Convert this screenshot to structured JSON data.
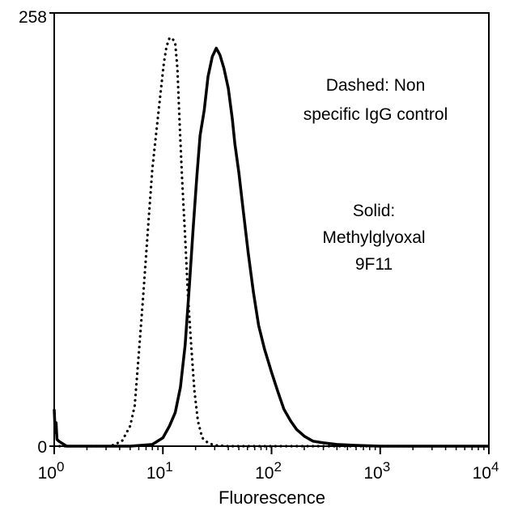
{
  "chart_data": {
    "type": "line",
    "xlabel": "Fluorescence",
    "ylabel": "",
    "x_scale": "log",
    "xlim": [
      1,
      10000
    ],
    "ylim": [
      0,
      258
    ],
    "x_ticks": [
      {
        "value": 1,
        "base": "10",
        "exp": "0"
      },
      {
        "value": 10,
        "base": "10",
        "exp": "1"
      },
      {
        "value": 100,
        "base": "10",
        "exp": "2"
      },
      {
        "value": 1000,
        "base": "10",
        "exp": "3"
      },
      {
        "value": 10000,
        "base": "10",
        "exp": "4"
      }
    ],
    "y_ticks": [
      {
        "value": 0,
        "label": "0"
      },
      {
        "value": 258,
        "label": "258"
      }
    ],
    "grid": false,
    "series": [
      {
        "style": "dotted",
        "color": "#000000",
        "x": [
          1,
          3.3,
          4.2,
          5.0,
          5.5,
          6.0,
          6.6,
          7.3,
          8.0,
          8.8,
          9.5,
          10.2,
          10.8,
          11.5,
          12.2,
          13.0,
          13.6,
          14.2,
          15.0,
          16.0,
          17.0,
          18.3,
          19.5,
          21.0,
          23.0,
          26.0,
          30.0,
          40.0,
          100.0,
          10000
        ],
        "y": [
          0,
          0,
          3,
          12,
          24,
          55,
          90,
          130,
          165,
          190,
          210,
          228,
          238,
          243,
          243,
          240,
          225,
          195,
          160,
          125,
          90,
          58,
          33,
          15,
          5,
          2,
          0.5,
          0,
          0,
          0
        ]
      },
      {
        "style": "solid",
        "color": "#000000",
        "x": [
          1,
          1.02,
          1.04,
          1.06,
          1.1,
          1.3,
          2.0,
          5.0,
          8.0,
          10.0,
          11.5,
          13.0,
          14.5,
          16.0,
          17.5,
          19.0,
          20.5,
          22.0,
          24.0,
          26.0,
          28.5,
          31.0,
          33.5,
          36.5,
          40.0,
          43.5,
          46.0,
          50.0,
          55.0,
          61.0,
          68.0,
          76.0,
          86.0,
          100.0,
          115.0,
          130.0,
          150.0,
          170.0,
          200.0,
          240.0,
          300.0,
          400.0,
          600.0,
          1000.0,
          10000
        ],
        "y": [
          22,
          8,
          14,
          4,
          3,
          0,
          0,
          0,
          1,
          5,
          12,
          20,
          35,
          60,
          95,
          130,
          160,
          185,
          200,
          220,
          232,
          237,
          233,
          225,
          213,
          195,
          180,
          163,
          140,
          115,
          92,
          72,
          58,
          44,
          32,
          22,
          15,
          10,
          6,
          3,
          2,
          1,
          0.5,
          0,
          0
        ]
      }
    ],
    "annotations": [
      {
        "lines": [
          "Dashed: Non",
          "specific IgG control"
        ]
      },
      {
        "lines": [
          "Solid:",
          "Methylglyoxal",
          "9F11"
        ]
      }
    ]
  }
}
